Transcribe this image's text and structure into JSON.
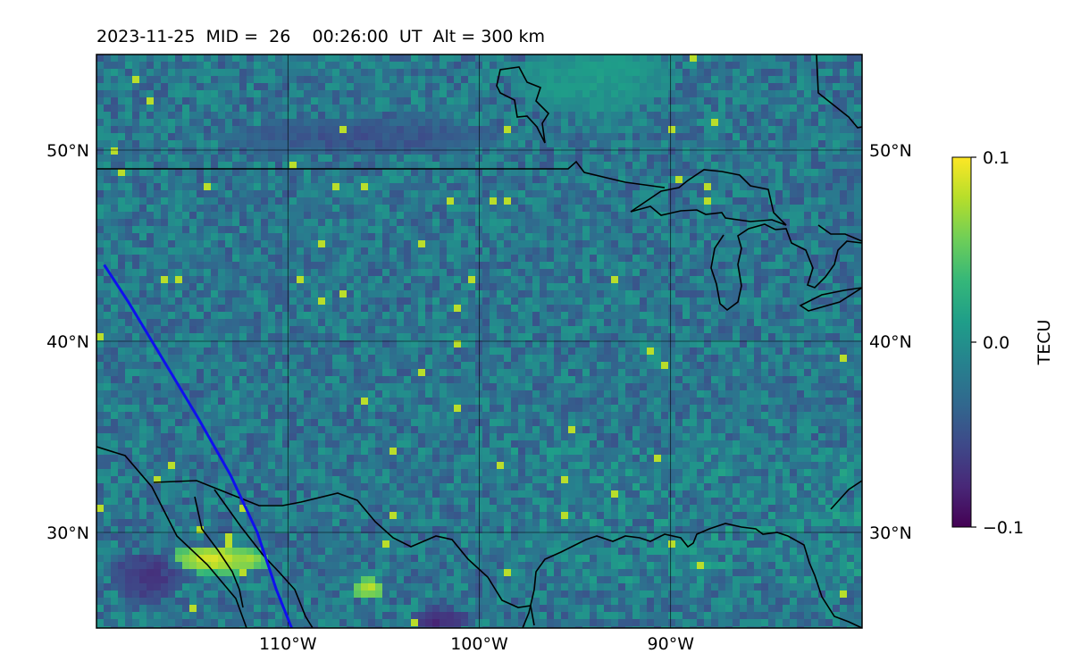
{
  "title": "2023-11-25  MID =  26    00:26:00  UT  Alt = 300 km",
  "map": {
    "lon_range": [
      -120,
      -80
    ],
    "lat_range": [
      25,
      55
    ],
    "grid_lons": [
      -110,
      -100,
      -90
    ],
    "grid_lats": [
      30,
      40,
      50
    ],
    "lon_labels": [
      "110°W",
      "100°W",
      "90°W"
    ],
    "lat_labels": [
      "30°N",
      "40°N",
      "50°N"
    ],
    "satellite_track": {
      "color": "#1010ee",
      "points": [
        [
          -119.6,
          44.0
        ],
        [
          -118.3,
          42.0
        ],
        [
          -116.5,
          39.0
        ],
        [
          -114.7,
          36.0
        ],
        [
          -113.0,
          33.0
        ],
        [
          -111.6,
          30.0
        ],
        [
          -110.6,
          27.0
        ],
        [
          -109.8,
          25.0
        ]
      ]
    }
  },
  "colorbar": {
    "label": "TECU",
    "min": -0.1,
    "max": 0.1,
    "tick_labels": [
      "0.1",
      "0.0",
      "−0.1"
    ],
    "colormap": [
      "#440154",
      "#482878",
      "#3e4989",
      "#31688e",
      "#26828e",
      "#1f9e89",
      "#35b779",
      "#6ece58",
      "#b5de2b",
      "#fde725"
    ]
  }
}
